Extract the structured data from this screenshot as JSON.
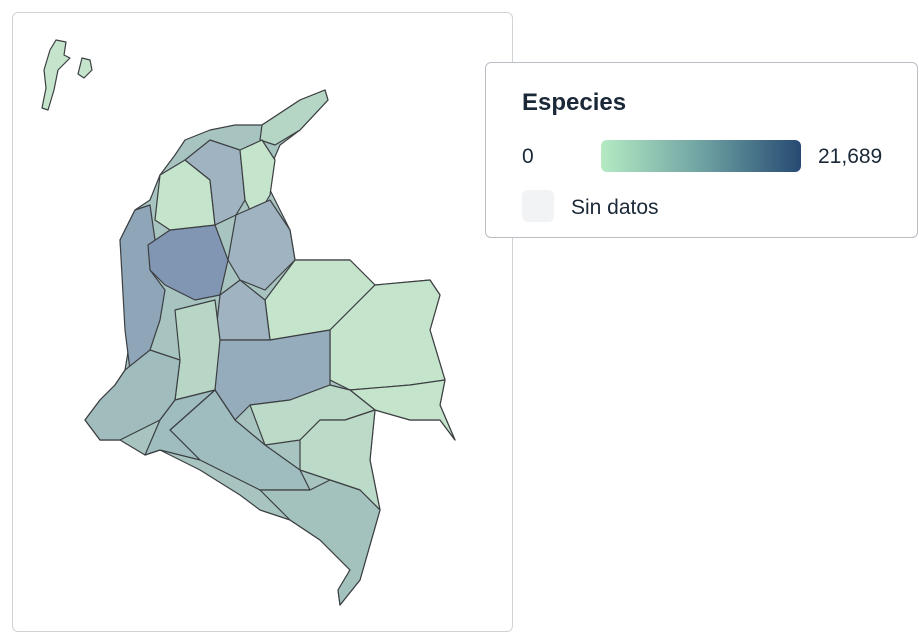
{
  "legend": {
    "title": "Especies",
    "min": "0",
    "max": "21,689",
    "no_data": "Sin datos"
  }
}
